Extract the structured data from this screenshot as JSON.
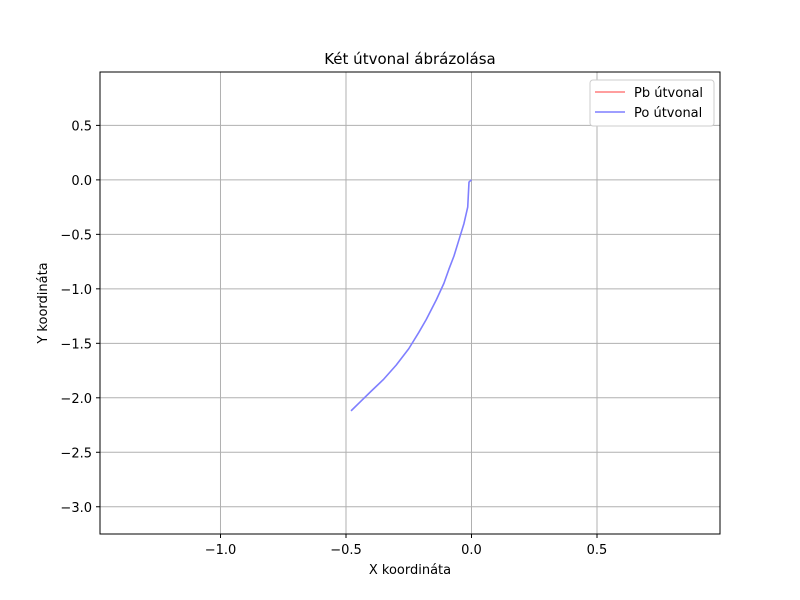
{
  "chart_data": {
    "type": "line",
    "title": "Két útvonal ábrázolása",
    "xlabel": "X koordináta",
    "ylabel": "Y koordináta",
    "xlim": [
      -1.48,
      0.99
    ],
    "ylim": [
      -3.25,
      0.99
    ],
    "xticks": [
      -1.0,
      -0.5,
      0.0,
      0.5
    ],
    "xtick_labels": [
      "−1.0",
      "−0.5",
      "0.0",
      "0.5"
    ],
    "yticks": [
      0.5,
      0.0,
      -0.5,
      -1.0,
      -1.5,
      -2.0,
      -2.5,
      -3.0
    ],
    "ytick_labels": [
      "0.5",
      "0.0",
      "−0.5",
      "−1.0",
      "−1.5",
      "−2.0",
      "−2.5",
      "−3.0"
    ],
    "grid": true,
    "legend_position": "top-right",
    "series": [
      {
        "name": "Pb útvonal",
        "color": "#ff7f7f",
        "x": [],
        "y": []
      },
      {
        "name": "Po útvonal",
        "color": "#7f7fff",
        "x": [
          0.0,
          -0.01,
          -0.015,
          -0.03,
          -0.05,
          -0.07,
          -0.09,
          -0.11,
          -0.14,
          -0.18,
          -0.21,
          -0.25,
          -0.3,
          -0.35,
          -0.4,
          -0.44,
          -0.48
        ],
        "y": [
          0.0,
          -0.02,
          -0.25,
          -0.4,
          -0.55,
          -0.7,
          -0.82,
          -0.95,
          -1.1,
          -1.28,
          -1.4,
          -1.55,
          -1.7,
          -1.83,
          -1.94,
          -2.03,
          -2.12
        ]
      }
    ]
  }
}
